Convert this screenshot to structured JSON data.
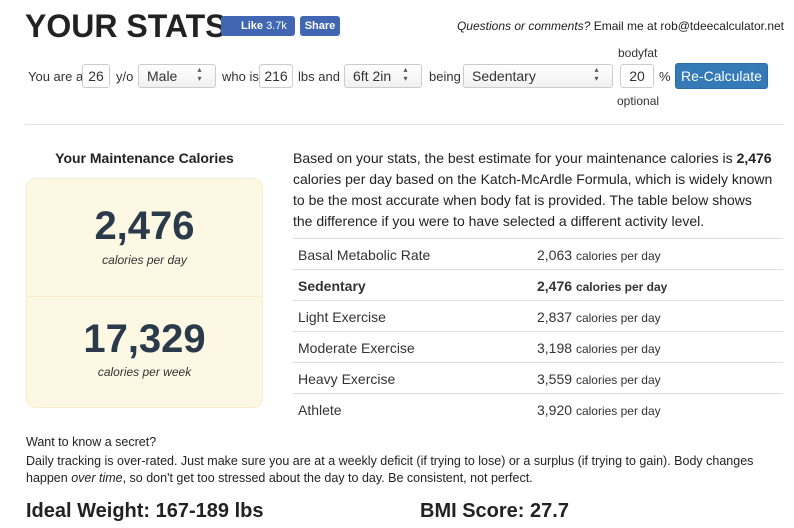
{
  "header": {
    "title": "YOUR STATS",
    "like": "Like",
    "like_count": "3.7k",
    "share": "Share",
    "question": "Questions or comments?",
    "email_prefix": "Email me at",
    "email": "rob@tdeecalculator.net"
  },
  "form": {
    "you_are_a": "You are a",
    "age": "26",
    "yo": "y/o",
    "gender": "Male",
    "who_is": "who is",
    "weight": "216",
    "lbs_and": "lbs and",
    "height": "6ft 2in",
    "being": "being",
    "activity": "Sedentary",
    "bodyfat_label": "bodyfat",
    "bodyfat": "20",
    "percent": "%",
    "optional": "optional",
    "button": "Re-Calculate"
  },
  "maintenance": {
    "heading": "Your Maintenance Calories",
    "daily": "2,476",
    "daily_unit": "calories per day",
    "weekly": "17,329",
    "weekly_unit": "calories per week"
  },
  "description": {
    "before": "Based on your stats, the best estimate for your maintenance calories is",
    "bold": "2,476",
    "after": "calories per day based on the Katch-McArdle Formula, which is widely known to be the most accurate when body fat is provided. The table below shows the difference if you were to have selected a different activity level."
  },
  "table": {
    "rows": [
      [
        "Basal Metabolic Rate",
        "2,063",
        "calories per day"
      ],
      [
        "Sedentary",
        "2,476",
        "calories per day"
      ],
      [
        "Light Exercise",
        "2,837",
        "calories per day"
      ],
      [
        "Moderate Exercise",
        "3,198",
        "calories per day"
      ],
      [
        "Heavy Exercise",
        "3,559",
        "calories per day"
      ],
      [
        "Athlete",
        "3,920",
        "calories per day"
      ]
    ]
  },
  "secret": {
    "title": "Want to know a secret?",
    "before": "Daily tracking is over-rated. Just make sure you are at a weekly deficit (if trying to lose) or a surplus (if trying to gain). Body changes happen",
    "italic": "over time",
    "after": ", so don't get too stressed about the day to day. Be consistent, not perfect."
  },
  "footer": {
    "ideal_weight": "Ideal Weight: 167-189 lbs",
    "bmi": "BMI Score: 27.7"
  }
}
